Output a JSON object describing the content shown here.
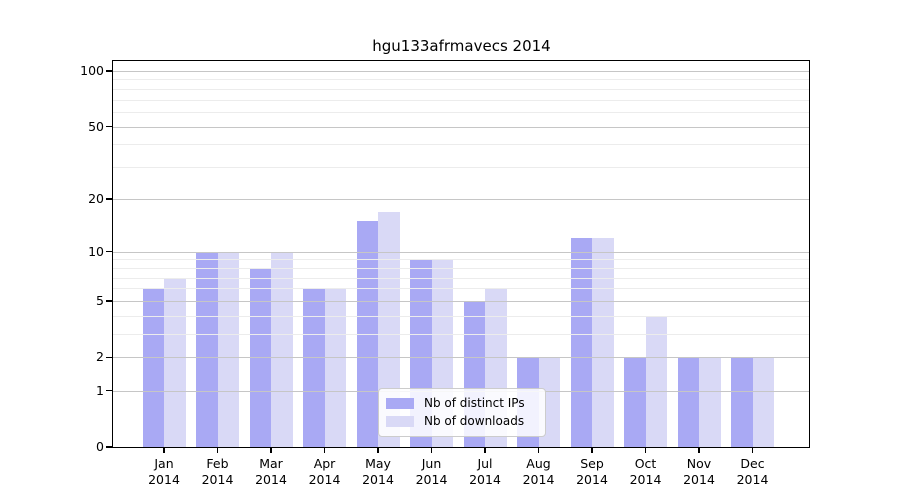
{
  "chart_data": {
    "type": "bar",
    "title": "hgu133afrmavecs 2014",
    "categories": [
      "Jan",
      "Feb",
      "Mar",
      "Apr",
      "May",
      "Jun",
      "Jul",
      "Aug",
      "Sep",
      "Oct",
      "Nov",
      "Dec"
    ],
    "category_year": "2014",
    "series": [
      {
        "name": "Nb of distinct IPs",
        "color": "#a9a9f4",
        "values": [
          6,
          10,
          8,
          6,
          15,
          9,
          5,
          2,
          12,
          2,
          2,
          2
        ]
      },
      {
        "name": "Nb of downloads",
        "color": "#d9d9f6",
        "values": [
          7,
          10,
          10,
          6,
          17,
          9,
          6,
          2,
          12,
          4,
          2,
          2
        ]
      }
    ],
    "y_axis": {
      "scale": "log1p",
      "ticks": [
        0,
        1,
        2,
        5,
        10,
        20,
        50,
        100
      ],
      "minor_gridlines": [
        3,
        4,
        6,
        7,
        8,
        9,
        30,
        40,
        60,
        70,
        80,
        90
      ]
    },
    "grid": true,
    "legend_position": "bottom-center",
    "colors": {
      "major_grid": "#c6c6c6",
      "minor_grid": "#ececec",
      "axis": "#000000",
      "background": "#ffffff"
    }
  }
}
